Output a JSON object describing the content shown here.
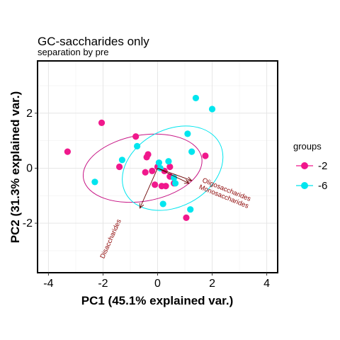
{
  "chart_data": {
    "type": "scatter",
    "title": "GC-saccharides only",
    "subtitle": "separation by pre",
    "xlabel": "PC1 (45.1% explained var.)",
    "ylabel": "PC2 (31.3% explained var.)",
    "xlim": [
      -4.4,
      4.4
    ],
    "ylim": [
      -3.8,
      3.9
    ],
    "x_ticks": [
      -4,
      -2,
      0,
      2,
      4
    ],
    "y_ticks": [
      -2,
      0,
      2
    ],
    "grid": true,
    "legend": {
      "title": "groups",
      "position": "right"
    },
    "series": [
      {
        "name": "-2",
        "color": "#f0188c",
        "points": [
          [
            -3.3,
            0.6
          ],
          [
            -2.05,
            1.65
          ],
          [
            -0.8,
            1.15
          ],
          [
            -1.4,
            0.05
          ],
          [
            -0.4,
            0.4
          ],
          [
            -0.35,
            0.5
          ],
          [
            -0.45,
            -0.15
          ],
          [
            -0.2,
            -0.1
          ],
          [
            0.0,
            0.05
          ],
          [
            0.25,
            -0.1
          ],
          [
            0.45,
            0.05
          ],
          [
            0.45,
            -0.3
          ],
          [
            0.6,
            -0.55
          ],
          [
            -0.1,
            -0.6
          ],
          [
            0.15,
            -0.65
          ],
          [
            0.3,
            -0.65
          ],
          [
            1.05,
            -1.8
          ],
          [
            1.75,
            0.45
          ]
        ]
      },
      {
        "name": "-6",
        "color": "#00e5ee",
        "points": [
          [
            -2.3,
            -0.5
          ],
          [
            -1.3,
            0.3
          ],
          [
            -0.75,
            0.8
          ],
          [
            0.05,
            0.2
          ],
          [
            0.1,
            0.0
          ],
          [
            0.4,
            0.25
          ],
          [
            0.6,
            -0.35
          ],
          [
            0.65,
            -0.55
          ],
          [
            0.2,
            -1.3
          ],
          [
            1.2,
            -1.5
          ],
          [
            1.1,
            1.25
          ],
          [
            1.25,
            0.6
          ],
          [
            1.4,
            2.55
          ],
          [
            2.0,
            2.15
          ]
        ]
      }
    ],
    "ellipses": [
      {
        "group": "-2",
        "color": "#c71585",
        "center": [
          -0.55,
          0.0
        ],
        "semi_axes": [
          2.2,
          1.2
        ],
        "angle_deg": 10
      },
      {
        "group": "-6",
        "color": "#00e5ee",
        "center": [
          0.55,
          0.0
        ],
        "semi_axes": [
          1.95,
          1.4
        ],
        "angle_deg": 28
      }
    ],
    "loadings": [
      {
        "label": "Oligosaccharides",
        "end": [
          1.25,
          -0.45
        ],
        "label_pos": [
          2.5,
          -0.85
        ],
        "angle_deg": 22
      },
      {
        "label": "Monosaccharides",
        "end": [
          1.15,
          -0.55
        ],
        "label_pos": [
          2.4,
          -1.1
        ],
        "angle_deg": 22
      },
      {
        "label": "Disaccharides",
        "end": [
          -0.65,
          -1.45
        ],
        "label_pos": [
          -1.65,
          -2.6
        ],
        "angle_deg": -66
      }
    ]
  }
}
